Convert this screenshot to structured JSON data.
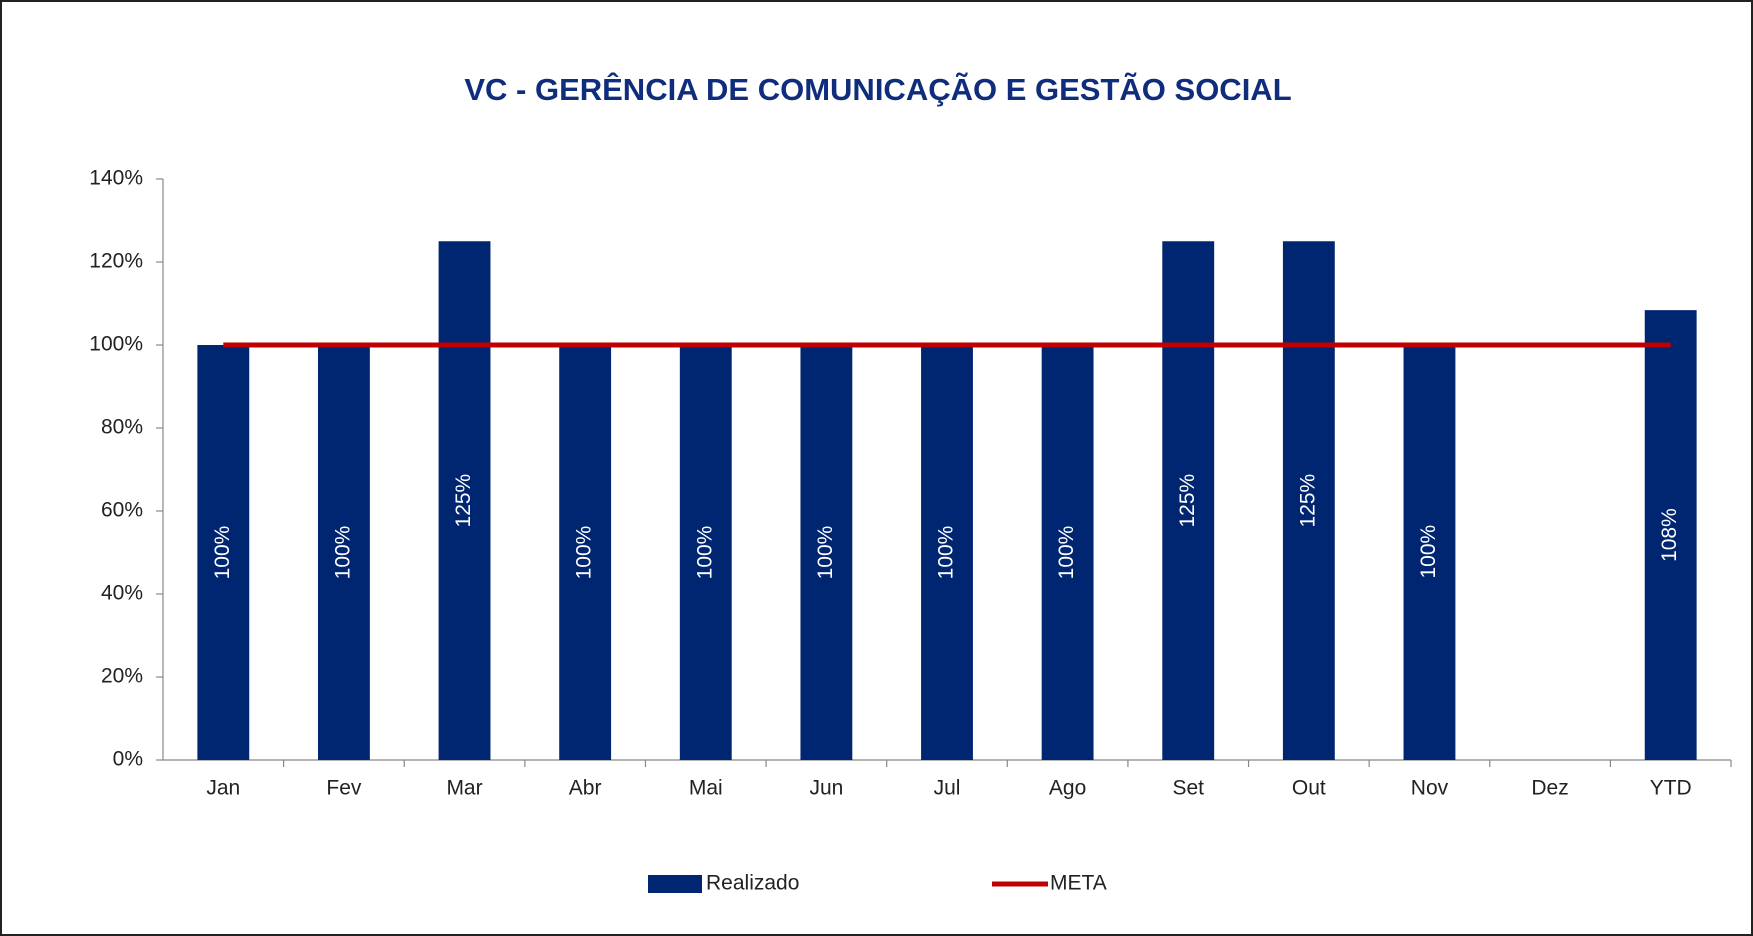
{
  "chart_data": {
    "type": "bar",
    "title": "VC - GERÊNCIA  DE COMUNICAÇÃO E GESTÃO SOCIAL",
    "categories": [
      "Jan",
      "Fev",
      "Mar",
      "Abr",
      "Mai",
      "Jun",
      "Jul",
      "Ago",
      "Set",
      "Out",
      "Nov",
      "Dez",
      "YTD"
    ],
    "series": [
      {
        "name": "Realizado",
        "type": "bar",
        "color": "#002571",
        "values": [
          100,
          100,
          125,
          100,
          100,
          100,
          100,
          100,
          125,
          125,
          100.4,
          null,
          108.4
        ],
        "value_labels": [
          "100%",
          "100%",
          "125%",
          "100%",
          "100%",
          "100%",
          "100%",
          "100%",
          "125%",
          "125%",
          "100%",
          null,
          "108%"
        ]
      },
      {
        "name": "META",
        "type": "line",
        "color": "#c00000",
        "values": [
          100,
          100,
          100,
          100,
          100,
          100,
          100,
          100,
          100,
          100,
          100,
          100,
          100
        ]
      }
    ],
    "ylim": [
      0,
      140
    ],
    "yticks": [
      {
        "value": 0,
        "label": "0%"
      },
      {
        "value": 20,
        "label": "20%"
      },
      {
        "value": 40,
        "label": "40%"
      },
      {
        "value": 60,
        "label": "60%"
      },
      {
        "value": 80,
        "label": "80%"
      },
      {
        "value": 100,
        "label": "100%"
      },
      {
        "value": 120,
        "label": "120%"
      },
      {
        "value": 140,
        "label": "140%"
      }
    ],
    "grid": false,
    "legend": "bottom"
  }
}
